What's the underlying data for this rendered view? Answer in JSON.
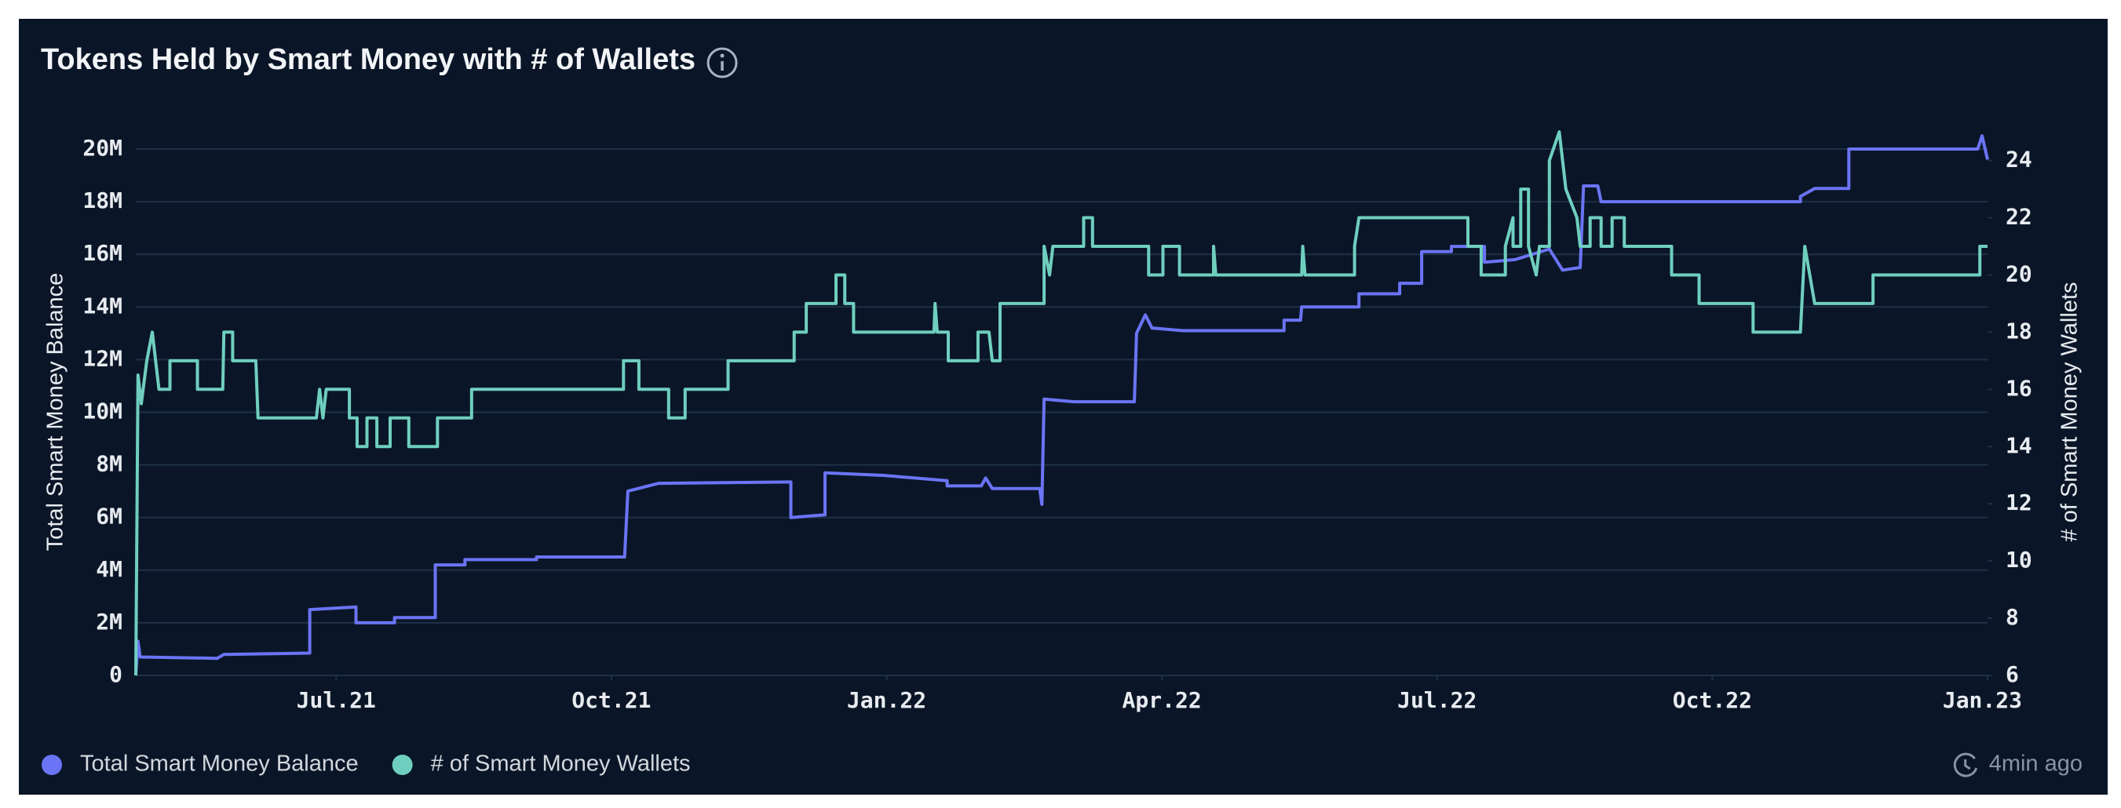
{
  "chart_data": {
    "type": "line",
    "title": "Tokens Held by Smart Money with # of Wallets",
    "ylabel": "Total Smart Money Balance",
    "y2label": "# of Smart Money Wallets",
    "updated": "4min ago",
    "grid": true,
    "xlim": [
      2021.318,
      2023.0
    ],
    "xticks": [
      {
        "value": 2021.5,
        "label": "Jul.21"
      },
      {
        "value": 2021.75,
        "label": "Oct.21"
      },
      {
        "value": 2022.0,
        "label": "Jan.22"
      },
      {
        "value": 2022.25,
        "label": "Apr.22"
      },
      {
        "value": 2022.5,
        "label": "Jul.22"
      },
      {
        "value": 2022.75,
        "label": "Oct.22"
      },
      {
        "value": 2023.0,
        "label": "Jan.23"
      }
    ],
    "ylim": [
      0,
      20000000
    ],
    "yticks": [
      0,
      {
        "value": 2000000,
        "label": "2M"
      },
      {
        "value": 4000000,
        "label": "4M"
      },
      {
        "value": 6000000,
        "label": "6M"
      },
      {
        "value": 8000000,
        "label": "8M"
      },
      {
        "value": 10000000,
        "label": "10M"
      },
      {
        "value": 12000000,
        "label": "12M"
      },
      {
        "value": 14000000,
        "label": "14M"
      },
      {
        "value": 16000000,
        "label": "16M"
      },
      {
        "value": 18000000,
        "label": "18M"
      },
      {
        "value": 20000000,
        "label": "20M"
      }
    ],
    "y2lim": [
      6,
      24.4
    ],
    "y2ticks": [
      6,
      8,
      10,
      12,
      14,
      16,
      18,
      20,
      22,
      24
    ],
    "series": [
      {
        "name": "Total Smart Money Balance",
        "color": "#6b74f5",
        "axis": "y",
        "x": [
          2021.318,
          2021.32,
          2021.322,
          2021.392,
          2021.398,
          2021.476,
          2021.476,
          2021.518,
          2021.518,
          2021.553,
          2021.553,
          2021.59,
          2021.59,
          2021.617,
          2021.617,
          2021.682,
          2021.682,
          2021.762,
          2021.765,
          2021.793,
          2021.913,
          2021.913,
          2021.944,
          2021.944,
          2021.997,
          2022.055,
          2022.055,
          2022.086,
          2022.09,
          2022.096,
          2022.139,
          2022.141,
          2022.143,
          2022.17,
          2022.225,
          2022.227,
          2022.235,
          2022.241,
          2022.269,
          2022.361,
          2022.361,
          2022.376,
          2022.377,
          2022.429,
          2022.429,
          2022.466,
          2022.466,
          2022.486,
          2022.486,
          2022.513,
          2022.513,
          2022.543,
          2022.543,
          2022.571,
          2022.602,
          2022.614,
          2022.63,
          2022.633,
          2022.646,
          2022.649,
          2022.83,
          2022.83,
          2022.843,
          2022.874,
          2022.874,
          2022.991,
          2022.995,
          2023.0
        ],
        "values": [
          0,
          1300000,
          700000,
          650000,
          800000,
          850000,
          2500000,
          2600000,
          2000000,
          2000000,
          2200000,
          2200000,
          4200000,
          4200000,
          4400000,
          4400000,
          4500000,
          4500000,
          7000000,
          7300000,
          7350000,
          6000000,
          6100000,
          7700000,
          7600000,
          7400000,
          7200000,
          7200000,
          7500000,
          7100000,
          7100000,
          6500000,
          10500000,
          10400000,
          10400000,
          13000000,
          13700000,
          13200000,
          13100000,
          13100000,
          13500000,
          13500000,
          14000000,
          14000000,
          14500000,
          14500000,
          14900000,
          14900000,
          16100000,
          16100000,
          16300000,
          16300000,
          15700000,
          15800000,
          16200000,
          15400000,
          15500000,
          18600000,
          18600000,
          18000000,
          18000000,
          18200000,
          18500000,
          18500000,
          20000000,
          20000000,
          20500000,
          19600000
        ]
      },
      {
        "name": "# of Smart Money Wallets",
        "color": "#6fcfbf",
        "axis": "y2",
        "x": [
          2021.318,
          2021.32,
          2021.323,
          2021.328,
          2021.333,
          2021.339,
          2021.349,
          2021.349,
          2021.374,
          2021.374,
          2021.397,
          2021.398,
          2021.406,
          2021.406,
          2021.427,
          2021.429,
          2021.482,
          2021.485,
          2021.488,
          2021.491,
          2021.512,
          2021.512,
          2021.519,
          2021.519,
          2021.528,
          2021.528,
          2021.537,
          2021.537,
          2021.549,
          2021.549,
          2021.566,
          2021.566,
          2021.592,
          2021.592,
          2021.623,
          2021.623,
          2021.761,
          2021.761,
          2021.775,
          2021.775,
          2021.802,
          2021.802,
          2021.817,
          2021.817,
          2021.856,
          2021.856,
          2021.916,
          2021.916,
          2021.927,
          2021.927,
          2021.954,
          2021.954,
          2021.962,
          2021.962,
          2021.97,
          2021.97,
          2022.043,
          2022.044,
          2022.046,
          2022.056,
          2022.056,
          2022.083,
          2022.083,
          2022.093,
          2022.096,
          2022.103,
          2022.103,
          2022.143,
          2022.143,
          2022.148,
          2022.151,
          2022.179,
          2022.179,
          2022.187,
          2022.187,
          2022.238,
          2022.238,
          2022.251,
          2022.251,
          2022.266,
          2022.266,
          2022.297,
          2022.297,
          2022.299,
          2022.377,
          2022.378,
          2022.38,
          2022.425,
          2022.425,
          2022.429,
          2022.528,
          2022.528,
          2022.54,
          2022.54,
          2022.562,
          2022.562,
          2022.569,
          2022.569,
          2022.576,
          2022.576,
          2022.583,
          2022.583,
          2022.59,
          2022.593,
          2022.602,
          2022.602,
          2022.611,
          2022.617,
          2022.627,
          2022.63,
          2022.639,
          2022.639,
          2022.649,
          2022.649,
          2022.659,
          2022.659,
          2022.67,
          2022.67,
          2022.713,
          2022.713,
          2022.738,
          2022.738,
          2022.787,
          2022.787,
          2022.83,
          2022.834,
          2022.843,
          2022.896,
          2022.896,
          2022.993,
          2022.993,
          2023.0
        ],
        "values": [
          6,
          16.5,
          15.5,
          17,
          18,
          16,
          16,
          17,
          17,
          16,
          16,
          18,
          18,
          17,
          17,
          15,
          15,
          16,
          15,
          16,
          16,
          15,
          15,
          14,
          14,
          15,
          15,
          14,
          14,
          15,
          15,
          14,
          14,
          15,
          15,
          16,
          16,
          17,
          17,
          16,
          16,
          15,
          15,
          16,
          16,
          17,
          17,
          18,
          18,
          19,
          19,
          20,
          20,
          19,
          19,
          18,
          18,
          19,
          18,
          18,
          17,
          17,
          18,
          18,
          17,
          17,
          19,
          19,
          21,
          20,
          21,
          21,
          22,
          22,
          21,
          21,
          20,
          20,
          21,
          21,
          20,
          20,
          21,
          20,
          20,
          21,
          20,
          20,
          21,
          22,
          22,
          21,
          21,
          20,
          20,
          21,
          22,
          21,
          21,
          23,
          23,
          21,
          20,
          21,
          21,
          24,
          25,
          23,
          22,
          21,
          21,
          22,
          22,
          21,
          21,
          22,
          22,
          21,
          21,
          20,
          20,
          19,
          19,
          18,
          18,
          21,
          19,
          19,
          20,
          20,
          21,
          21
        ]
      }
    ]
  }
}
